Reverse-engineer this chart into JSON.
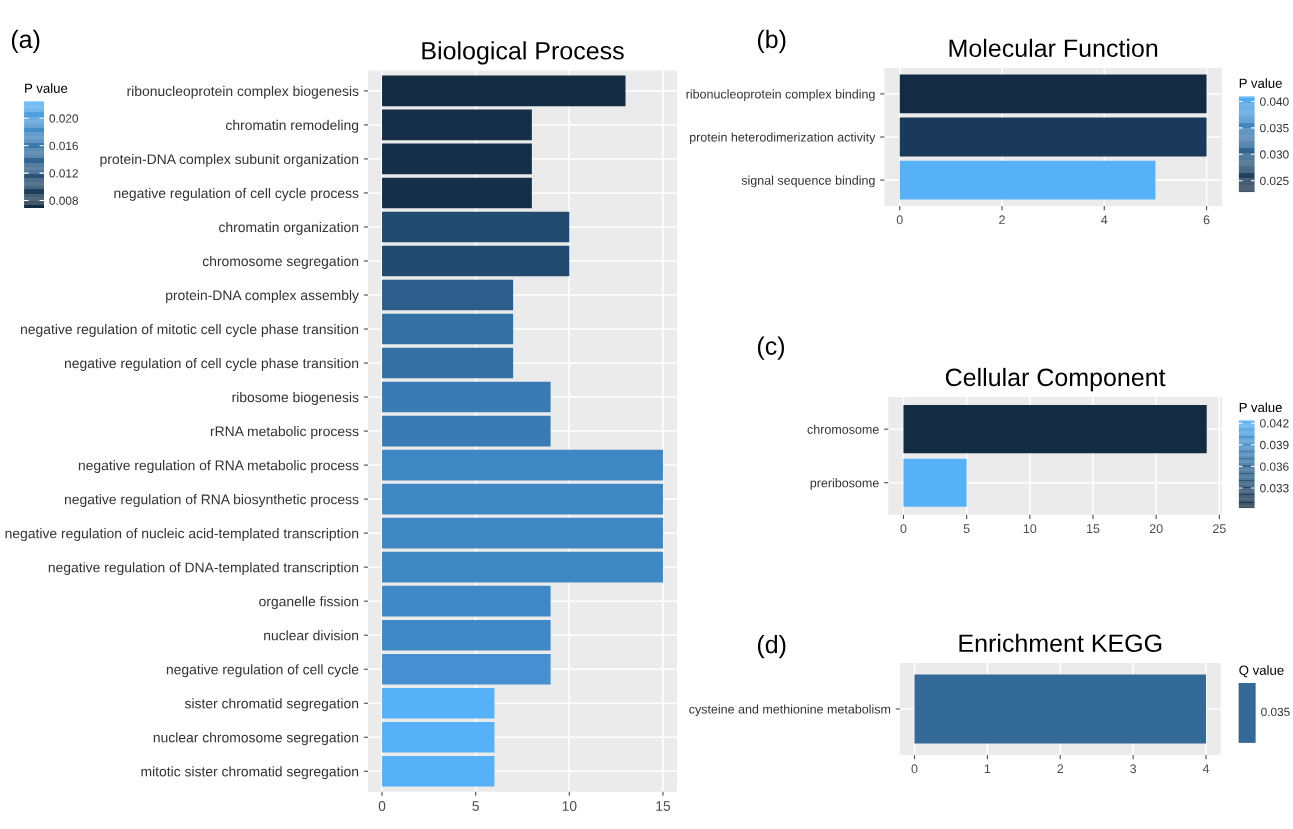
{
  "chart_data": [
    {
      "type": "bar",
      "orientation": "horizontal",
      "title": "Biological Process",
      "annotations": [
        "(a)"
      ],
      "clabel": "P value",
      "clim": [
        0.0069,
        0.0225
      ],
      "cticks": [
        0.008,
        0.012,
        0.016,
        {
          "value": 0.02,
          "label": "0.020"
        }
      ],
      "categories": [
        "ribonucleoprotein complex biogenesis",
        "chromatin remodeling",
        "protein-DNA complex subunit organization",
        "negative regulation of cell cycle process",
        "chromatin organization",
        "chromosome segregation",
        "protein-DNA complex assembly",
        "negative regulation of mitotic cell cycle phase transition",
        "negative regulation of cell cycle phase transition",
        "ribosome biogenesis",
        "rRNA metabolic process",
        "negative regulation of RNA metabolic process",
        "negative regulation of RNA biosynthetic process",
        "negative regulation of nucleic acid-templated transcription",
        "negative regulation of DNA-templated transcription",
        "organelle fission",
        "nuclear division",
        "negative regulation of cell cycle",
        "sister chromatid segregation",
        "nuclear chromosome segregation",
        "mitotic sister chromatid segregation"
      ],
      "values": [
        13,
        8,
        8,
        8,
        10,
        10,
        7,
        7,
        7,
        9,
        9,
        15,
        15,
        15,
        15,
        9,
        9,
        9,
        6,
        6,
        6
      ],
      "colors": [
        "#132b43",
        "#152f49",
        "#152f49",
        "#152f49",
        "#234b70",
        "#234b70",
        "#2d5e8b",
        "#3570a3",
        "#3570a3",
        "#3a7bb4",
        "#3a7bb4",
        "#4088c4",
        "#4088c4",
        "#4088c4",
        "#4088c4",
        "#4189c6",
        "#4189c6",
        "#4690d1",
        "#56b1f7",
        "#56b1f7",
        "#56b1f7"
      ],
      "xlim": [
        -0.75,
        15.75
      ],
      "xticks": [
        0,
        5,
        10,
        15
      ],
      "grid": true
    },
    {
      "type": "bar",
      "orientation": "horizontal",
      "title": "Molecular Function",
      "annotations": [
        "(b)"
      ],
      "clabel": "P value",
      "clim": [
        0.0228,
        0.041
      ],
      "cticks": [
        0.025,
        {
          "value": 0.03,
          "label": "0.030"
        },
        0.035,
        {
          "value": 0.04,
          "label": "0.040"
        }
      ],
      "categories": [
        "ribonucleoprotein complex binding",
        "protein heterodimerization activity",
        "signal sequence binding"
      ],
      "values": [
        6,
        6,
        5
      ],
      "colors": [
        "#132b43",
        "#1b3a59",
        "#56b1f7"
      ],
      "xlim": [
        -0.3,
        6.3
      ],
      "xticks": [
        0,
        2,
        4,
        6
      ],
      "grid": true
    },
    {
      "type": "bar",
      "orientation": "horizontal",
      "title": "Cellular Component",
      "annotations": [
        "(c)"
      ],
      "clabel": "P value",
      "clim": [
        0.0302,
        0.0424
      ],
      "cticks": [
        0.033,
        0.036,
        0.039,
        0.042
      ],
      "categories": [
        "chromosome",
        "preribosome"
      ],
      "values": [
        24,
        5
      ],
      "colors": [
        "#132b43",
        "#56b1f7"
      ],
      "xlim": [
        -1.2,
        25.2
      ],
      "xticks": [
        0,
        5,
        10,
        15,
        20,
        25
      ],
      "grid": true
    },
    {
      "type": "bar",
      "orientation": "horizontal",
      "title": "Enrichment KEGG",
      "annotations": [
        "(d)",
        "0.035"
      ],
      "clabel": "Q value",
      "categories": [
        "cysteine and methionine metabolism"
      ],
      "values": [
        4
      ],
      "colors": [
        "#336a98"
      ],
      "xlim": [
        -0.2,
        4.2
      ],
      "xticks": [
        0,
        1,
        2,
        3,
        4
      ],
      "grid": true
    }
  ]
}
